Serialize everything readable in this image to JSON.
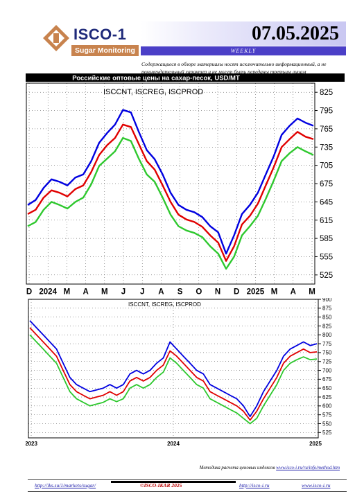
{
  "header": {
    "logo_name": "ISCO-1",
    "logo_sub": "Sugar Monitoring",
    "date": "07.05.2025",
    "period": "WEEKLY",
    "disclaimer": "Содержащиеся в обзоре материалы носят исключительно информационный, а не рекомендательный характер и не могут быть переданы третьим лицам"
  },
  "colors": {
    "iscnt": "#0000e0",
    "iscreg": "#e00000",
    "iscprod": "#2ec82e",
    "logo_orange": "#c8834e",
    "logo_blue": "#1f2a7a",
    "weekly_bg": "#4b3fc7"
  },
  "chart_data": [
    {
      "type": "line",
      "title": "Российские оптовые цены на сахар-песок, USD/MT",
      "legend_text": "ISCCNT, ISCREG, ISCPROD",
      "ylim": [
        510,
        840
      ],
      "yticks": [
        525,
        555,
        585,
        615,
        645,
        675,
        705,
        735,
        765,
        795,
        825
      ],
      "xticks": [
        "D",
        "2024",
        "M",
        "A",
        "M",
        "J",
        "J",
        "A",
        "S",
        "O",
        "N",
        "D",
        "2025",
        "M",
        "A",
        "M"
      ],
      "grid": true,
      "series": [
        {
          "name": "ISCCNT",
          "values": [
            640,
            648,
            668,
            682,
            678,
            672,
            685,
            690,
            712,
            742,
            758,
            772,
            796,
            792,
            760,
            730,
            715,
            690,
            660,
            640,
            632,
            628,
            620,
            605,
            595,
            560,
            590,
            625,
            640,
            660,
            690,
            720,
            755,
            770,
            782,
            775,
            770
          ]
        },
        {
          "name": "ISCREG",
          "values": [
            625,
            632,
            652,
            664,
            660,
            654,
            666,
            672,
            694,
            722,
            738,
            750,
            772,
            768,
            740,
            712,
            698,
            672,
            645,
            624,
            616,
            612,
            604,
            590,
            578,
            548,
            572,
            608,
            622,
            642,
            672,
            702,
            735,
            748,
            760,
            752,
            748
          ]
        },
        {
          "name": "ISCPROD",
          "values": [
            605,
            612,
            632,
            645,
            640,
            634,
            645,
            652,
            674,
            704,
            716,
            728,
            750,
            745,
            716,
            690,
            678,
            652,
            624,
            605,
            598,
            594,
            587,
            572,
            560,
            535,
            555,
            590,
            605,
            622,
            650,
            680,
            712,
            725,
            735,
            728,
            722
          ]
        }
      ]
    },
    {
      "type": "line",
      "legend_text": "ISCCNT, ISCREG, ISCPROD",
      "ylim": [
        510,
        900
      ],
      "yticks": [
        525,
        550,
        575,
        600,
        625,
        650,
        675,
        700,
        725,
        750,
        775,
        800,
        825,
        850,
        875,
        900
      ],
      "xticks": [
        "2023",
        "2024",
        "2025"
      ],
      "grid": true,
      "series": [
        {
          "name": "ISCCNT",
          "values": [
            840,
            820,
            800,
            780,
            760,
            720,
            680,
            660,
            650,
            640,
            645,
            650,
            660,
            650,
            660,
            690,
            700,
            690,
            700,
            720,
            735,
            780,
            760,
            740,
            720,
            700,
            690,
            660,
            650,
            640,
            630,
            620,
            600,
            570,
            600,
            640,
            670,
            700,
            740,
            760,
            770,
            780,
            770,
            775
          ]
        },
        {
          "name": "ISCREG",
          "values": [
            820,
            800,
            780,
            760,
            740,
            700,
            660,
            640,
            630,
            620,
            625,
            630,
            640,
            630,
            640,
            670,
            680,
            670,
            680,
            700,
            715,
            755,
            740,
            720,
            700,
            680,
            670,
            640,
            630,
            620,
            610,
            600,
            585,
            560,
            585,
            620,
            650,
            680,
            720,
            740,
            750,
            760,
            750,
            752
          ]
        },
        {
          "name": "ISCPROD",
          "values": [
            800,
            780,
            760,
            740,
            720,
            680,
            640,
            620,
            610,
            600,
            605,
            610,
            620,
            612,
            620,
            650,
            660,
            650,
            660,
            680,
            695,
            735,
            720,
            700,
            680,
            660,
            650,
            620,
            610,
            600,
            590,
            580,
            565,
            550,
            565,
            600,
            630,
            660,
            700,
            720,
            730,
            738,
            730,
            732
          ]
        }
      ]
    }
  ],
  "footer": {
    "note_prefix": "Методика расчета ценовых индексов",
    "note_link": "www.isco-i.ru/ru/info/method.htm",
    "link_left": "http://iks.su/1/markets/sugar/",
    "copyright": "©ISCO-IKAR 2025",
    "link_mid": "http://isco-i.ru",
    "link_right": "www.isco-i.ru"
  }
}
